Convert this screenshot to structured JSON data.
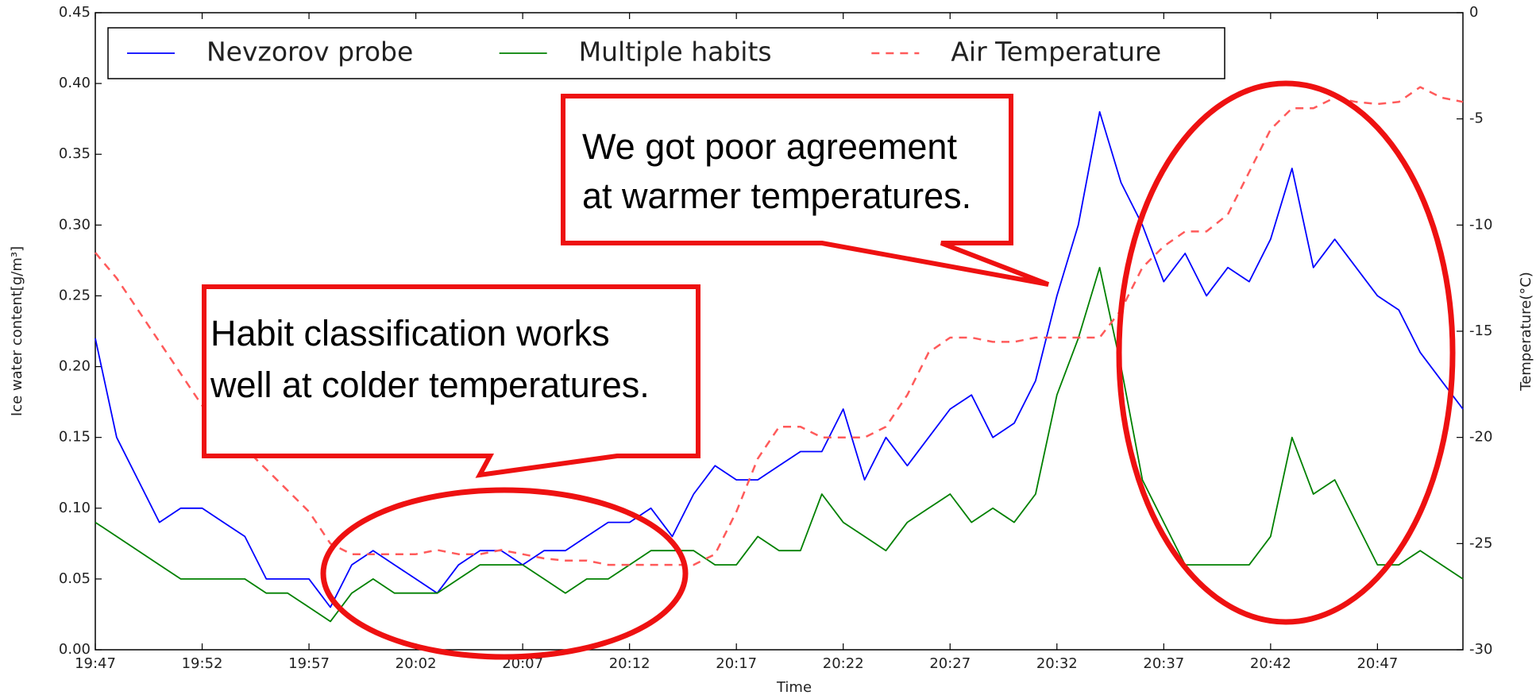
{
  "chart_data": {
    "type": "line",
    "xlabel": "Time",
    "ylabel": "Ice water content[g/m³]",
    "y2label": "Temperature(°C)",
    "x": [
      "19:47",
      "19:48",
      "19:49",
      "19:50",
      "19:51",
      "19:52",
      "19:53",
      "19:54",
      "19:55",
      "19:56",
      "19:57",
      "19:58",
      "19:59",
      "20:00",
      "20:01",
      "20:02",
      "20:03",
      "20:04",
      "20:05",
      "20:06",
      "20:07",
      "20:08",
      "20:09",
      "20:10",
      "20:11",
      "20:12",
      "20:13",
      "20:14",
      "20:15",
      "20:16",
      "20:17",
      "20:18",
      "20:19",
      "20:20",
      "20:21",
      "20:22",
      "20:23",
      "20:24",
      "20:25",
      "20:26",
      "20:27",
      "20:28",
      "20:29",
      "20:30",
      "20:31",
      "20:32",
      "20:33",
      "20:34",
      "20:35",
      "20:36",
      "20:37",
      "20:38",
      "20:39",
      "20:40",
      "20:41",
      "20:42",
      "20:43",
      "20:44",
      "20:45",
      "20:46",
      "20:47",
      "20:48",
      "20:49",
      "20:50",
      "20:51"
    ],
    "xlim": [
      "19:47",
      "20:51"
    ],
    "xticks": [
      "19:47",
      "19:52",
      "19:57",
      "20:02",
      "20:07",
      "20:12",
      "20:17",
      "20:22",
      "20:27",
      "20:32",
      "20:37",
      "20:42",
      "20:47"
    ],
    "ylim": [
      0,
      0.45
    ],
    "yticks": [
      {
        "value": 0,
        "label": "0.00"
      },
      {
        "value": 0.05,
        "label": "0.05"
      },
      {
        "value": 0.1,
        "label": "0.10"
      },
      {
        "value": 0.15,
        "label": "0.15"
      },
      {
        "value": 0.2,
        "label": "0.20"
      },
      {
        "value": 0.25,
        "label": "0.25"
      },
      {
        "value": 0.3,
        "label": "0.30"
      },
      {
        "value": 0.35,
        "label": "0.35"
      },
      {
        "value": 0.4,
        "label": "0.40"
      },
      {
        "value": 0.45,
        "label": "0.45"
      }
    ],
    "y2lim": [
      -30,
      0
    ],
    "y2ticks": [
      -30,
      -25,
      -20,
      -15,
      -10,
      -5,
      0
    ],
    "legend": "upper left",
    "series": [
      {
        "name": "Nevzorov probe",
        "color": "#0000ff",
        "style": "solid",
        "values": [
          0.22,
          0.15,
          0.12,
          0.09,
          0.1,
          0.1,
          0.09,
          0.08,
          0.05,
          0.05,
          0.05,
          0.03,
          0.06,
          0.07,
          0.06,
          0.05,
          0.04,
          0.06,
          0.07,
          0.07,
          0.06,
          0.07,
          0.07,
          0.08,
          0.09,
          0.09,
          0.1,
          0.08,
          0.11,
          0.13,
          0.12,
          0.12,
          0.13,
          0.14,
          0.14,
          0.17,
          0.12,
          0.15,
          0.13,
          0.15,
          0.17,
          0.18,
          0.15,
          0.16,
          0.19,
          0.25,
          0.3,
          0.38,
          0.33,
          0.3,
          0.26,
          0.28,
          0.25,
          0.27,
          0.26,
          0.29,
          0.34,
          0.27,
          0.29,
          0.27,
          0.25,
          0.24,
          0.21,
          0.19,
          0.17
        ]
      },
      {
        "name": "Multiple habits",
        "color": "#008000",
        "style": "solid",
        "values": [
          0.09,
          0.08,
          0.07,
          0.06,
          0.05,
          0.05,
          0.05,
          0.05,
          0.04,
          0.04,
          0.03,
          0.02,
          0.04,
          0.05,
          0.04,
          0.04,
          0.04,
          0.05,
          0.06,
          0.06,
          0.06,
          0.05,
          0.04,
          0.05,
          0.05,
          0.06,
          0.07,
          0.07,
          0.07,
          0.06,
          0.06,
          0.08,
          0.07,
          0.07,
          0.11,
          0.09,
          0.08,
          0.07,
          0.09,
          0.1,
          0.11,
          0.09,
          0.1,
          0.09,
          0.11,
          0.18,
          0.22,
          0.27,
          0.2,
          0.12,
          0.09,
          0.06,
          0.06,
          0.06,
          0.06,
          0.08,
          0.15,
          0.11,
          0.12,
          0.09,
          0.06,
          0.06,
          0.07,
          0.06,
          0.05
        ]
      },
      {
        "name": "Air Temperature",
        "color": "#ff5a5a",
        "style": "dashed",
        "axis": "y2",
        "values": [
          -11.3,
          -12.5,
          -14,
          -15.5,
          -17,
          -18.5,
          -19.5,
          -20.5,
          -21.5,
          -22.5,
          -23.5,
          -25,
          -25.5,
          -25.5,
          -25.5,
          -25.5,
          -25.3,
          -25.5,
          -25.5,
          -25.3,
          -25.5,
          -25.7,
          -25.8,
          -25.8,
          -26,
          -26,
          -26,
          -26,
          -26,
          -25.5,
          -23.5,
          -21,
          -19.5,
          -19.5,
          -20,
          -20,
          -20,
          -19.5,
          -18,
          -16,
          -15.3,
          -15.3,
          -15.5,
          -15.5,
          -15.3,
          -15.3,
          -15.3,
          -15.3,
          -14,
          -12,
          -11,
          -10.3,
          -10.3,
          -9.5,
          -7.5,
          -5.5,
          -4.5,
          -4.5,
          -4,
          -4.2,
          -4.3,
          -4.2,
          -3.5,
          -4,
          -4.2
        ]
      }
    ],
    "annotations": [
      {
        "lines": [
          "We got poor agreement",
          "at warmer temperatures."
        ]
      },
      {
        "lines": [
          "Habit classification works",
          "well at colder temperatures."
        ]
      }
    ]
  }
}
